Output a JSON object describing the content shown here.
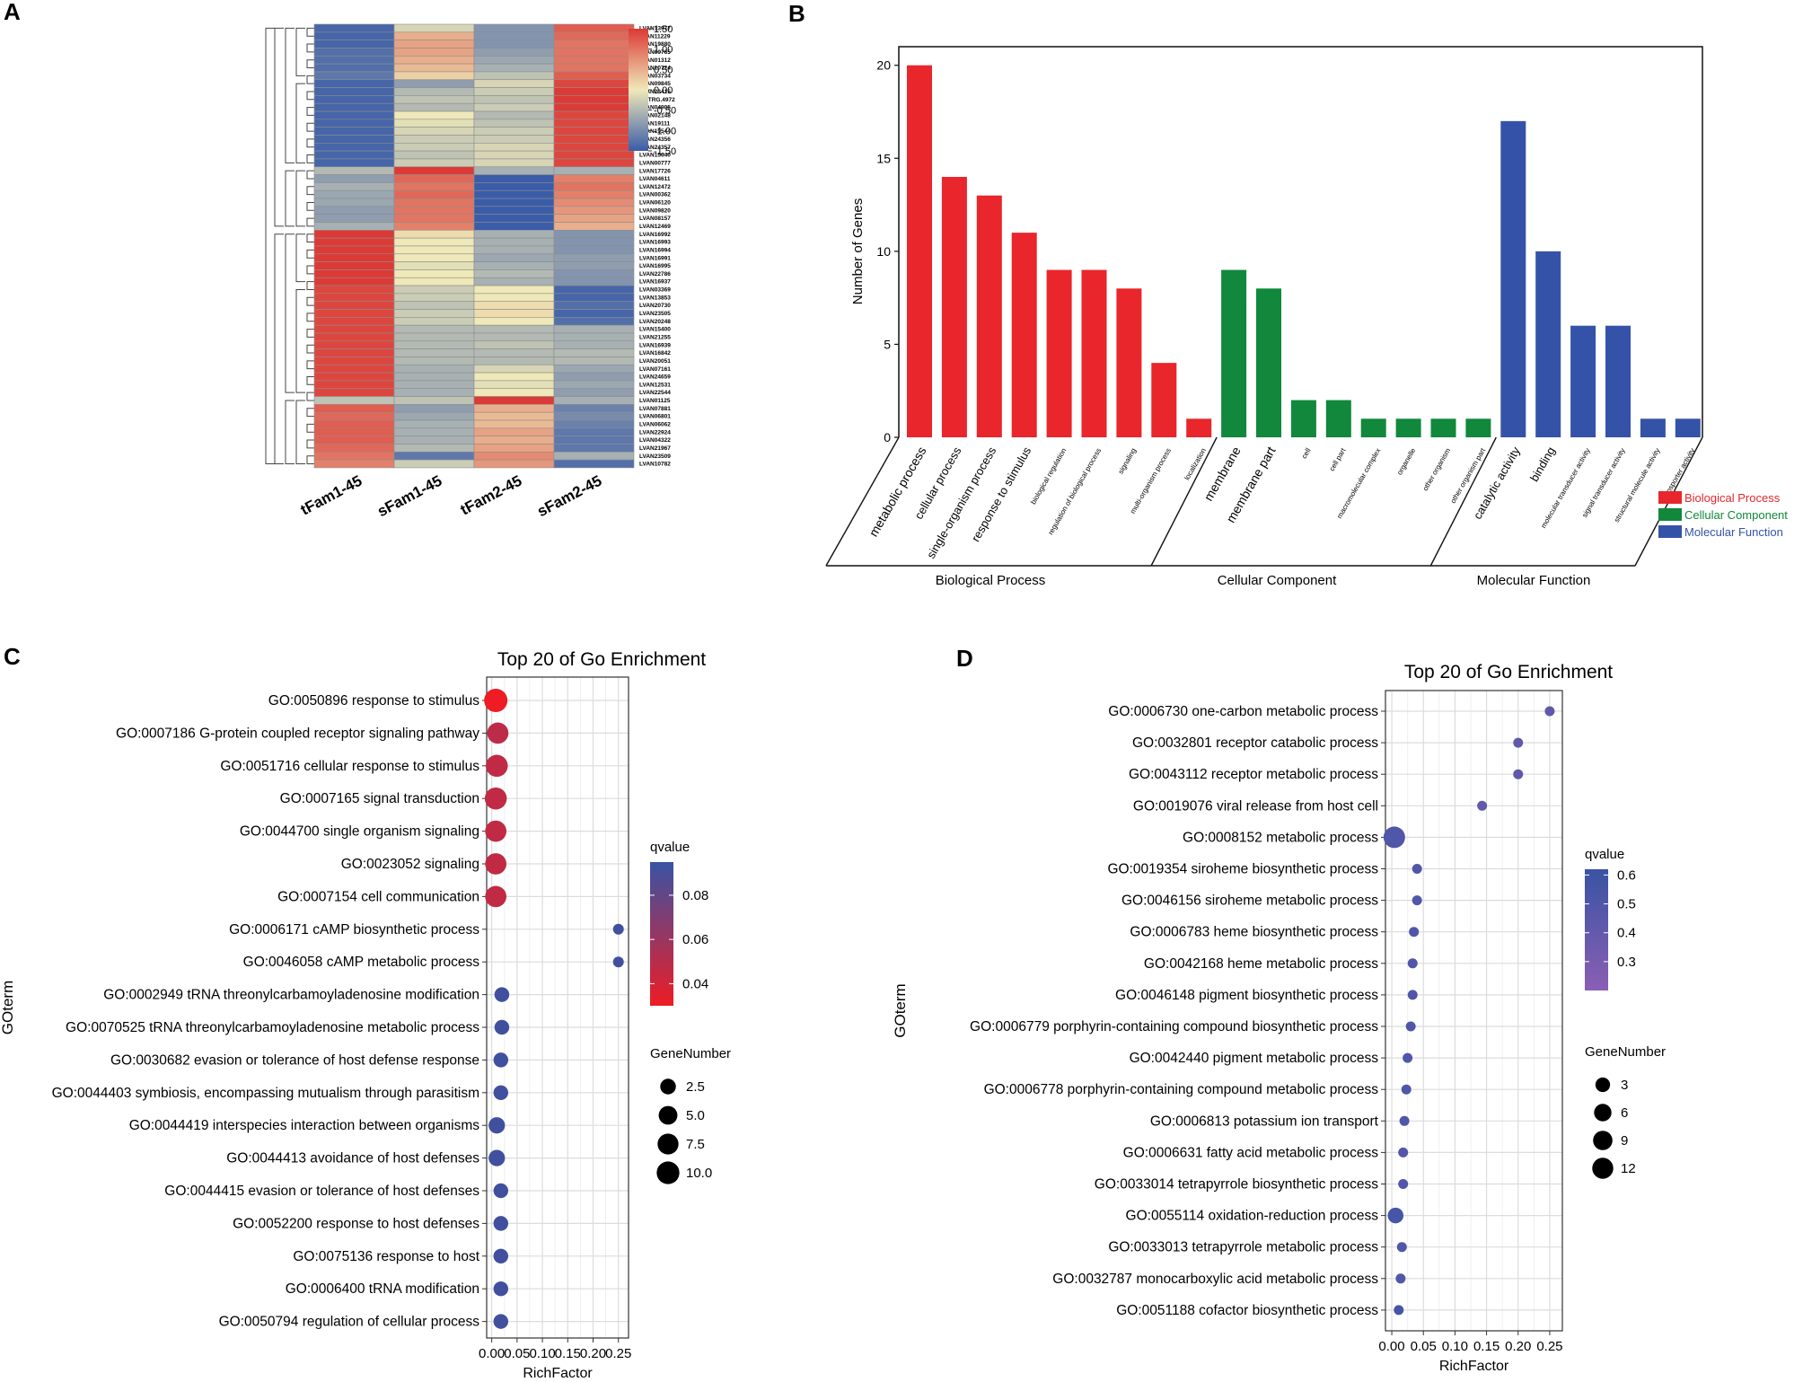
{
  "panels": {
    "a": "A",
    "b": "B",
    "c": "C",
    "d": "D"
  },
  "colors": {
    "bp": "#e8262b",
    "cc": "#11883c",
    "mf": "#3453a8",
    "heat_low": "#3b5ca8",
    "heat_mid": "#efe8b8",
    "heat_high": "#dc3a36"
  },
  "chart_data": [
    {
      "id": "A",
      "type": "heatmap",
      "title": "",
      "columns": [
        "tFam1-45",
        "sFam1-45",
        "tFam2-45",
        "sFam2-45"
      ],
      "rows": [
        "LVAN13977",
        "LVAN11229",
        "LVAN19880",
        "LVAN09765",
        "LVAN01312",
        "LVAN10724",
        "LVAN03734",
        "LVAN09845",
        "LVAN23415",
        "MSTRG.4972",
        "LVAN04905",
        "LVAN02148",
        "LVAN19111",
        "LVAN19544",
        "LVAN24356",
        "LVAN24357",
        "LVAN15640",
        "LVAN00777",
        "LVAN17726",
        "LVAN04611",
        "LVAN12472",
        "LVAN00362",
        "LVAN06120",
        "LVAN09820",
        "LVAN08157",
        "LVAN12469",
        "LVAN16992",
        "LVAN16993",
        "LVAN16994",
        "LVAN16991",
        "LVAN16995",
        "LVAN22786",
        "LVAN16937",
        "LVAN03369",
        "LVAN13853",
        "LVAN20730",
        "LVAN23505",
        "LVAN20248",
        "LVAN15400",
        "LVAN21255",
        "LVAN16939",
        "LVAN16842",
        "LVAN20051",
        "LVAN07161",
        "LVAN24659",
        "LVAN12531",
        "LVAN22544",
        "LVAN01125",
        "LVAN07881",
        "LVAN06801",
        "LVAN06062",
        "LVAN22924",
        "LVAN04322",
        "LVAN21967",
        "LVAN23509",
        "LVAN10782"
      ],
      "values": [
        [
          -1.4,
          -0.2,
          -0.9,
          1.2
        ],
        [
          -1.4,
          0.5,
          -0.9,
          1.1
        ],
        [
          -1.4,
          0.6,
          -0.9,
          1.0
        ],
        [
          -1.3,
          0.6,
          -0.8,
          1.0
        ],
        [
          -1.3,
          0.5,
          -0.7,
          1.0
        ],
        [
          -1.3,
          0.4,
          -0.6,
          1.0
        ],
        [
          -1.2,
          0.2,
          -0.4,
          1.2
        ],
        [
          -1.4,
          -0.8,
          -0.2,
          1.4
        ],
        [
          -1.4,
          -0.5,
          -0.3,
          1.5
        ],
        [
          -1.4,
          -0.4,
          -0.4,
          1.5
        ],
        [
          -1.4,
          -0.5,
          -0.3,
          1.5
        ],
        [
          -1.4,
          0.0,
          -0.5,
          1.4
        ],
        [
          -1.4,
          -0.1,
          -0.4,
          1.4
        ],
        [
          -1.4,
          -0.2,
          -0.3,
          1.4
        ],
        [
          -1.4,
          -0.3,
          -0.3,
          1.4
        ],
        [
          -1.4,
          -0.3,
          -0.2,
          1.4
        ],
        [
          -1.4,
          -0.4,
          -0.2,
          1.4
        ],
        [
          -1.4,
          -0.3,
          -0.2,
          1.4
        ],
        [
          -0.5,
          1.5,
          -0.6,
          -0.6
        ],
        [
          -0.8,
          1.1,
          -1.5,
          0.9
        ],
        [
          -0.6,
          1.0,
          -1.5,
          1.0
        ],
        [
          -0.7,
          1.1,
          -1.5,
          0.9
        ],
        [
          -0.7,
          1.0,
          -1.5,
          0.8
        ],
        [
          -0.8,
          1.0,
          -1.5,
          0.7
        ],
        [
          -0.8,
          1.0,
          -1.5,
          0.6
        ],
        [
          -0.6,
          0.9,
          -1.5,
          0.5
        ],
        [
          1.5,
          0.1,
          -0.6,
          -0.9
        ],
        [
          1.5,
          0.0,
          -0.6,
          -0.9
        ],
        [
          1.5,
          0.0,
          -0.6,
          -0.9
        ],
        [
          1.5,
          0.0,
          -0.7,
          -0.8
        ],
        [
          1.5,
          -0.1,
          -0.6,
          -0.8
        ],
        [
          1.5,
          0.0,
          -0.5,
          -0.9
        ],
        [
          1.5,
          0.0,
          -0.6,
          -0.9
        ],
        [
          1.4,
          -0.3,
          0.0,
          -1.4
        ],
        [
          1.4,
          -0.3,
          0.0,
          -1.4
        ],
        [
          1.4,
          -0.4,
          0.1,
          -1.3
        ],
        [
          1.4,
          -0.3,
          0.1,
          -1.4
        ],
        [
          1.4,
          -0.3,
          0.0,
          -1.3
        ],
        [
          1.4,
          -0.5,
          -0.5,
          -0.6
        ],
        [
          1.4,
          -0.5,
          -0.5,
          -0.6
        ],
        [
          1.4,
          -0.5,
          -0.4,
          -0.6
        ],
        [
          1.4,
          -0.5,
          -0.5,
          -0.5
        ],
        [
          1.4,
          -0.5,
          -0.5,
          -0.5
        ],
        [
          1.4,
          -0.6,
          -0.2,
          -0.7
        ],
        [
          1.4,
          -0.6,
          0.0,
          -0.8
        ],
        [
          1.4,
          -0.6,
          -0.1,
          -0.7
        ],
        [
          1.4,
          -0.6,
          0.0,
          -0.8
        ],
        [
          -0.4,
          -0.4,
          1.5,
          -0.6
        ],
        [
          1.2,
          -0.8,
          0.5,
          -1.1
        ],
        [
          1.1,
          -0.7,
          0.4,
          -1.0
        ],
        [
          1.2,
          -0.6,
          0.4,
          -1.1
        ],
        [
          1.2,
          -0.6,
          0.6,
          -1.2
        ],
        [
          1.2,
          -0.6,
          0.5,
          -1.2
        ],
        [
          1.1,
          -0.5,
          0.6,
          -1.2
        ],
        [
          1.0,
          -1.2,
          0.8,
          -0.6
        ],
        [
          0.9,
          -0.3,
          0.7,
          -1.3
        ]
      ],
      "legend": {
        "ticks": [
          "1.50",
          "1.00",
          "0.50",
          "0.00",
          "-0.50",
          "-1.00",
          "-1.50"
        ],
        "range": [
          -1.5,
          1.5
        ]
      }
    },
    {
      "id": "B",
      "type": "bar",
      "title": "",
      "ylabel": "Number of Genes",
      "ylim": [
        0,
        21
      ],
      "yticks": [
        "0",
        "5",
        "10",
        "15",
        "20"
      ],
      "categories": [
        "metabolic process",
        "cellular process",
        "single-organism process",
        "response to stimulus",
        "biological regulation",
        "regulation of biological process",
        "signaling",
        "multi-organism process",
        "localization",
        "membrane",
        "membrane part",
        "cell",
        "cell part",
        "macromolecular complex",
        "organelle",
        "other organism",
        "other organism part",
        "catalytic activity",
        "binding",
        "molecular transducer activity",
        "signal transducer activity",
        "structural molecule activity",
        "transporter activity"
      ],
      "values": [
        20,
        14,
        13,
        11,
        9,
        9,
        8,
        4,
        1,
        9,
        8,
        2,
        2,
        1,
        1,
        1,
        1,
        17,
        10,
        6,
        6,
        1,
        1
      ],
      "groups": [
        "bp",
        "bp",
        "bp",
        "bp",
        "bp",
        "bp",
        "bp",
        "bp",
        "bp",
        "cc",
        "cc",
        "cc",
        "cc",
        "cc",
        "cc",
        "cc",
        "cc",
        "mf",
        "mf",
        "mf",
        "mf",
        "mf",
        "mf"
      ],
      "group_labels": [
        "Biological Process",
        "Cellular Component",
        "Molecular Function"
      ],
      "legend": [
        "Biological Process",
        "Cellular Component",
        "Molecular Function"
      ]
    },
    {
      "id": "C",
      "type": "scatter",
      "title": "Top 20 of Go Enrichment",
      "xlabel": "RichFactor",
      "ylabel": "GOterm",
      "xlim": [
        -0.01,
        0.27
      ],
      "xticks": [
        "0.00",
        "0.05",
        "0.10",
        "0.15",
        "0.20",
        "0.25"
      ],
      "terms": [
        "GO:0050896 response to stimulus",
        "GO:0007186 G-protein coupled receptor signaling pathway",
        "GO:0051716 cellular response to stimulus",
        "GO:0007165 signal transduction",
        "GO:0044700 single organism signaling",
        "GO:0023052 signaling",
        "GO:0007154 cell communication",
        "GO:0006171 cAMP biosynthetic process",
        "GO:0046058 cAMP metabolic process",
        "GO:0002949 tRNA threonylcarbamoyladenosine modification",
        "GO:0070525 tRNA threonylcarbamoyladenosine metabolic process",
        "GO:0030682 evasion or tolerance of host defense response",
        "GO:0044403 symbiosis, encompassing mutualism through parasitism",
        "GO:0044419 interspecies interaction between organisms",
        "GO:0044413 avoidance of host defenses",
        "GO:0044415 evasion or tolerance of host defenses",
        "GO:0052200 response to host defenses",
        "GO:0075136 response to host",
        "GO:0006400 tRNA modification",
        "GO:0050794 regulation of cellular process"
      ],
      "richfactor": [
        0.008,
        0.012,
        0.01,
        0.008,
        0.008,
        0.008,
        0.008,
        0.25,
        0.25,
        0.02,
        0.02,
        0.018,
        0.018,
        0.01,
        0.01,
        0.018,
        0.018,
        0.018,
        0.018,
        0.018
      ],
      "qvalue": [
        0.028,
        0.048,
        0.046,
        0.046,
        0.046,
        0.046,
        0.046,
        0.092,
        0.092,
        0.092,
        0.092,
        0.092,
        0.092,
        0.092,
        0.092,
        0.092,
        0.092,
        0.092,
        0.092,
        0.092
      ],
      "genenumber": [
        11,
        8,
        9,
        9,
        8,
        8,
        8,
        1,
        1,
        2,
        2,
        2,
        2,
        3,
        3,
        2,
        2,
        2,
        2,
        2
      ],
      "qvalue_ticks": [
        "0.08",
        "0.06",
        "0.04"
      ],
      "qvalue_range": [
        0.03,
        0.095
      ],
      "genenumber_ticks": [
        "2.5",
        "5.0",
        "7.5",
        "10.0"
      ],
      "legend_titles": [
        "qvalue",
        "GeneNumber"
      ],
      "color_low": "#ee1c25",
      "color_high": "#3953a4"
    },
    {
      "id": "D",
      "type": "scatter",
      "title": "Top 20 of Go Enrichment",
      "xlabel": "RichFactor",
      "ylabel": "GOterm",
      "xlim": [
        -0.01,
        0.27
      ],
      "xticks": [
        "0.00",
        "0.05",
        "0.10",
        "0.15",
        "0.20",
        "0.25"
      ],
      "terms": [
        "GO:0006730 one-carbon metabolic process",
        "GO:0032801 receptor catabolic process",
        "GO:0043112 receptor metabolic process",
        "GO:0019076 viral release from host cell",
        "GO:0008152 metabolic process",
        "GO:0019354 siroheme biosynthetic process",
        "GO:0046156 siroheme metabolic process",
        "GO:0006783 heme biosynthetic process",
        "GO:0042168 heme metabolic process",
        "GO:0046148 pigment biosynthetic process",
        "GO:0006779 porphyrin-containing compound biosynthetic process",
        "GO:0042440 pigment metabolic process",
        "GO:0006778 porphyrin-containing compound metabolic process",
        "GO:0006813 potassium ion transport",
        "GO:0006631 fatty acid metabolic process",
        "GO:0033014 tetrapyrrole biosynthetic process",
        "GO:0055114 oxidation-reduction process",
        "GO:0033013 tetrapyrrole metabolic process",
        "GO:0032787 monocarboxylic acid metabolic process",
        "GO:0051188 cofactor biosynthetic process"
      ],
      "richfactor": [
        0.25,
        0.2,
        0.2,
        0.143,
        0.004,
        0.04,
        0.04,
        0.035,
        0.033,
        0.033,
        0.03,
        0.025,
        0.023,
        0.02,
        0.018,
        0.018,
        0.006,
        0.016,
        0.014,
        0.011
      ],
      "qvalue": [
        0.42,
        0.42,
        0.42,
        0.42,
        0.5,
        0.5,
        0.5,
        0.5,
        0.5,
        0.5,
        0.5,
        0.5,
        0.5,
        0.5,
        0.5,
        0.5,
        0.55,
        0.5,
        0.5,
        0.55
      ],
      "genenumber": [
        1,
        1,
        1,
        1,
        13,
        1,
        1,
        1,
        1,
        1,
        1,
        1,
        1,
        1,
        1,
        1,
        4,
        1,
        1,
        1
      ],
      "qvalue_ticks": [
        "0.6",
        "0.5",
        "0.4",
        "0.3"
      ],
      "qvalue_range": [
        0.2,
        0.62
      ],
      "genenumber_ticks": [
        "3",
        "6",
        "9",
        "12"
      ],
      "legend_titles": [
        "qvalue",
        "GeneNumber"
      ],
      "color_low": "#8a5fb3",
      "color_high": "#3953a4"
    }
  ]
}
